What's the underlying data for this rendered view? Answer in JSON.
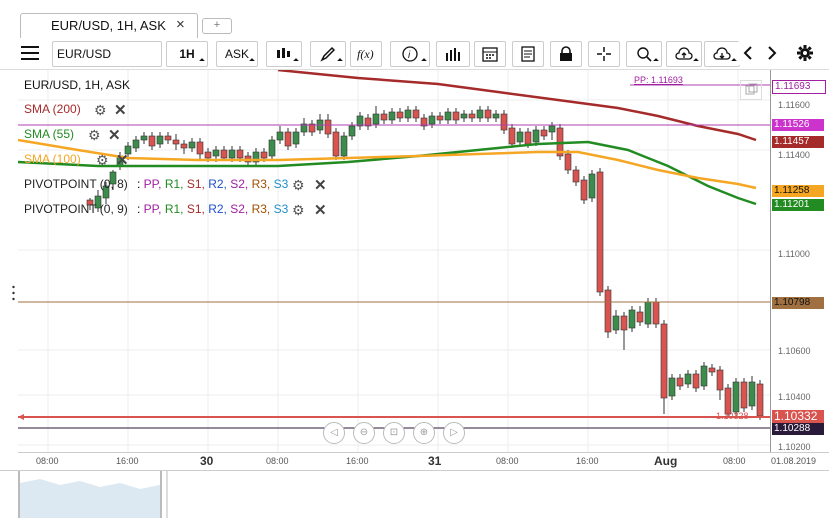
{
  "tab": {
    "title": "EUR/USD, 1H, ASK",
    "close": "×",
    "new": "+"
  },
  "toolbar": {
    "symbol": "EUR/USD",
    "period": "1H",
    "side": "ASK"
  },
  "chart": {
    "label": "EUR/USD, 1H, ASK",
    "pp_label": "PP: 1.11693",
    "indicators": [
      {
        "name": "SMA (200)",
        "color": "#a52a2a"
      },
      {
        "name": "SMA (55)",
        "color": "#228b22"
      },
      {
        "name": "SMA (100)",
        "color": "#f5a623"
      }
    ],
    "pivots": [
      {
        "name": "PIVOTPOINT (0, 8)",
        "levels": [
          "PP",
          "R1",
          "S1",
          "R2",
          "S2",
          "R3",
          "S3"
        ]
      },
      {
        "name": "PIVOTPOINT (0, 9)",
        "levels": [
          "PP",
          "R1",
          "S1",
          "R2",
          "S2",
          "R3",
          "S3"
        ]
      }
    ],
    "bid_line_label": "1.10328"
  },
  "price_scale": {
    "ticks": [
      "1.11600",
      "1.11400",
      "1.11000",
      "1.10600",
      "1.10400",
      "1.10200"
    ],
    "boxes": [
      {
        "value": "1.11693",
        "color": "#ffffff",
        "text": "#a020a0"
      },
      {
        "value": "1.11526",
        "color": "#cc33cc",
        "text": "#ffffff"
      },
      {
        "value": "1.11457",
        "color": "#a52a2a",
        "text": "#ffffff"
      },
      {
        "value": "1.11258",
        "color": "#f5a623",
        "text": "#111111"
      },
      {
        "value": "1.11201",
        "color": "#228b22",
        "text": "#ffffff"
      },
      {
        "value": "1.10798",
        "color": "#a07040",
        "text": "#111111"
      },
      {
        "value": "1.10332",
        "color": "#d9534f",
        "text": "#ffffff"
      },
      {
        "value": "1.10288",
        "color": "#2a1a3a",
        "text": "#ffffff"
      }
    ]
  },
  "time_axis": [
    "08:00",
    "16:00",
    "30",
    "08:00",
    "16:00",
    "31",
    "08:00",
    "16:00",
    "Aug",
    "08:00",
    "01.08.2019"
  ],
  "chart_data": {
    "type": "candlestick",
    "symbol": "EUR/USD",
    "timeframe": "1H",
    "series": [
      {
        "name": "SMA (200)",
        "color": "#a52a2a"
      },
      {
        "name": "SMA (55)",
        "color": "#228b22"
      },
      {
        "name": "SMA (100)",
        "color": "#f5a623"
      }
    ],
    "ylim": [
      1.102,
      1.117
    ],
    "last_price": 1.10332
  }
}
